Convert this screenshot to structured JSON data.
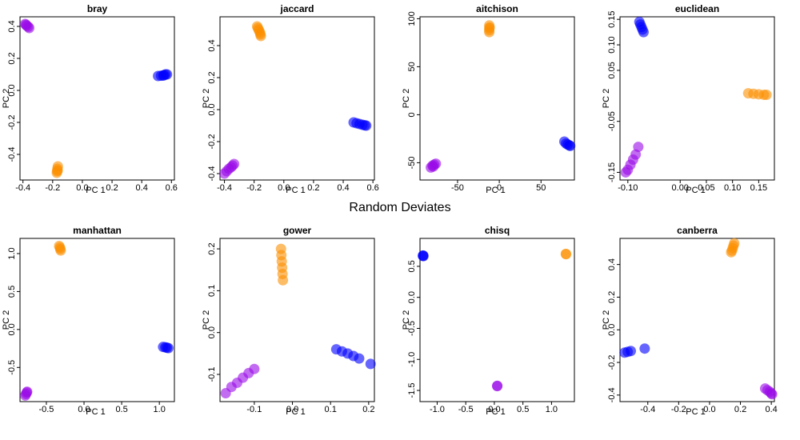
{
  "figure": {
    "suptitle": "Random Deviates"
  },
  "chart_data": [
    {
      "type": "scatter",
      "title": "bray",
      "xlabel": "PC 1",
      "ylabel": "PC 2",
      "xlim": [
        -0.42,
        0.62
      ],
      "ylim": [
        -0.56,
        0.46
      ],
      "xticks": [
        -0.4,
        -0.2,
        0.0,
        0.2,
        0.4,
        0.6
      ],
      "xtick_labels": [
        "-0.4",
        "-0.2",
        "0.0",
        "0.2",
        "0.4",
        "0.6"
      ],
      "yticks": [
        -0.4,
        -0.2,
        0.0,
        0.2,
        0.4
      ],
      "ytick_labels": [
        "-0.4",
        "-0.2",
        "0.0",
        "0.2",
        "0.4"
      ],
      "series": [
        {
          "color": "#9a0ae8",
          "points": [
            [
              -0.385,
              0.415
            ],
            [
              -0.375,
              0.405
            ],
            [
              -0.365,
              0.398
            ],
            [
              -0.358,
              0.39
            ],
            [
              -0.38,
              0.41
            ]
          ]
        },
        {
          "color": "#fb8f00",
          "points": [
            [
              -0.165,
              -0.475
            ],
            [
              -0.168,
              -0.49
            ],
            [
              -0.17,
              -0.505
            ],
            [
              -0.172,
              -0.515
            ],
            [
              -0.166,
              -0.5
            ]
          ]
        },
        {
          "color": "#0000ff",
          "points": [
            [
              0.51,
              0.09
            ],
            [
              0.53,
              0.092
            ],
            [
              0.55,
              0.095
            ],
            [
              0.56,
              0.1
            ],
            [
              0.57,
              0.1
            ],
            [
              0.545,
              0.093
            ]
          ]
        }
      ]
    },
    {
      "type": "scatter",
      "title": "jaccard",
      "xlabel": "PC 1",
      "ylabel": "PC 2",
      "xlim": [
        -0.43,
        0.61
      ],
      "ylim": [
        -0.44,
        0.58
      ],
      "xticks": [
        -0.4,
        -0.2,
        0.0,
        0.2,
        0.4,
        0.6
      ],
      "xtick_labels": [
        "-0.4",
        "-0.2",
        "0.0",
        "0.2",
        "0.4",
        "0.6"
      ],
      "yticks": [
        -0.4,
        -0.2,
        0.0,
        0.2,
        0.4
      ],
      "ytick_labels": [
        "-0.4",
        "-0.2",
        "0.0",
        "0.2",
        "0.4"
      ],
      "series": [
        {
          "color": "#fb8f00",
          "points": [
            [
              -0.18,
              0.52
            ],
            [
              -0.175,
              0.51
            ],
            [
              -0.17,
              0.5
            ],
            [
              -0.165,
              0.49
            ],
            [
              -0.16,
              0.48
            ],
            [
              -0.158,
              0.47
            ],
            [
              -0.155,
              0.46
            ]
          ]
        },
        {
          "color": "#9a0ae8",
          "points": [
            [
              -0.4,
              -0.4
            ],
            [
              -0.385,
              -0.385
            ],
            [
              -0.37,
              -0.37
            ],
            [
              -0.355,
              -0.36
            ],
            [
              -0.345,
              -0.35
            ],
            [
              -0.335,
              -0.34
            ]
          ]
        },
        {
          "color": "#0000ff",
          "points": [
            [
              0.47,
              -0.08
            ],
            [
              0.49,
              -0.085
            ],
            [
              0.51,
              -0.09
            ],
            [
              0.53,
              -0.095
            ],
            [
              0.545,
              -0.098
            ],
            [
              0.555,
              -0.1
            ]
          ]
        }
      ]
    },
    {
      "type": "scatter",
      "title": "aitchison",
      "xlabel": "PC 1",
      "ylabel": "PC 2",
      "xlim": [
        -95,
        90
      ],
      "ylim": [
        -68,
        102
      ],
      "xticks": [
        -50,
        0,
        50
      ],
      "xtick_labels": [
        "-50",
        "0",
        "50"
      ],
      "yticks": [
        -50,
        0,
        50,
        100
      ],
      "ytick_labels": [
        "-50",
        "0",
        "50",
        "100"
      ],
      "series": [
        {
          "color": "#fb8f00",
          "points": [
            [
              -12,
              93
            ],
            [
              -12,
              90
            ],
            [
              -12,
              88
            ],
            [
              -12,
              86
            ],
            [
              -11.5,
              91
            ]
          ]
        },
        {
          "color": "#9a0ae8",
          "points": [
            [
              -82,
              -55
            ],
            [
              -80,
              -53
            ],
            [
              -78,
              -52
            ],
            [
              -76,
              -51
            ],
            [
              -79,
              -54
            ]
          ]
        },
        {
          "color": "#0000ff",
          "points": [
            [
              78,
              -28
            ],
            [
              80,
              -30
            ],
            [
              82,
              -31
            ],
            [
              84,
              -32
            ],
            [
              85,
              -32.5
            ]
          ]
        }
      ]
    },
    {
      "type": "scatter",
      "title": "euclidean",
      "xlabel": "PC 1",
      "ylabel": "PC 2",
      "xlim": [
        -0.115,
        0.18
      ],
      "ylim": [
        -0.165,
        0.155
      ],
      "xticks": [
        -0.1,
        0.0,
        0.05,
        0.1,
        0.15
      ],
      "xtick_labels": [
        "-0.10",
        "0.00",
        "0.05",
        "0.10",
        "0.15"
      ],
      "yticks": [
        -0.15,
        -0.05,
        0.05,
        0.1,
        0.15
      ],
      "ytick_labels": [
        "-0.15",
        "-0.05",
        "0.05",
        "0.10",
        "0.15"
      ],
      "series": [
        {
          "color": "#0000ff",
          "points": [
            [
              -0.078,
              0.145
            ],
            [
              -0.076,
              0.14
            ],
            [
              -0.074,
              0.135
            ],
            [
              -0.072,
              0.13
            ],
            [
              -0.07,
              0.125
            ]
          ]
        },
        {
          "color": "#fb8f00",
          "points": [
            [
              0.13,
              0.005
            ],
            [
              0.14,
              0.004
            ],
            [
              0.15,
              0.003
            ],
            [
              0.16,
              0.002
            ],
            [
              0.165,
              0.002
            ]
          ]
        },
        {
          "color": "#9a0ae8",
          "points": [
            [
              -0.08,
              -0.1
            ],
            [
              -0.085,
              -0.115
            ],
            [
              -0.09,
              -0.125
            ],
            [
              -0.095,
              -0.135
            ],
            [
              -0.1,
              -0.145
            ],
            [
              -0.104,
              -0.15
            ]
          ]
        }
      ]
    },
    {
      "type": "scatter",
      "title": "manhattan",
      "xlabel": "PC 1",
      "ylabel": "PC 2",
      "xlim": [
        -0.85,
        1.2
      ],
      "ylim": [
        -0.95,
        1.2
      ],
      "xticks": [
        -0.5,
        0.0,
        0.5,
        1.0
      ],
      "xtick_labels": [
        "-0.5",
        "0.0",
        "0.5",
        "1.0"
      ],
      "yticks": [
        -0.5,
        0.0,
        0.5,
        1.0
      ],
      "ytick_labels": [
        "-0.5",
        "0.0",
        "0.5",
        "1.0"
      ],
      "series": [
        {
          "color": "#fb8f00",
          "points": [
            [
              -0.33,
              1.1
            ],
            [
              -0.32,
              1.08
            ],
            [
              -0.315,
              1.06
            ],
            [
              -0.31,
              1.04
            ]
          ]
        },
        {
          "color": "#9a0ae8",
          "points": [
            [
              -0.78,
              -0.87
            ],
            [
              -0.77,
              -0.85
            ],
            [
              -0.76,
              -0.83
            ],
            [
              -0.755,
              -0.82
            ]
          ]
        },
        {
          "color": "#0000ff",
          "points": [
            [
              1.05,
              -0.23
            ],
            [
              1.08,
              -0.235
            ],
            [
              1.1,
              -0.24
            ],
            [
              1.12,
              -0.245
            ]
          ]
        }
      ]
    },
    {
      "type": "scatter",
      "title": "gower",
      "xlabel": "PC 1",
      "ylabel": "PC 2",
      "xlim": [
        -0.19,
        0.215
      ],
      "ylim": [
        -0.165,
        0.225
      ],
      "xticks": [
        -0.1,
        0.0,
        0.1,
        0.2
      ],
      "xtick_labels": [
        "-0.1",
        "0.0",
        "0.1",
        "0.2"
      ],
      "yticks": [
        -0.1,
        0.0,
        0.1,
        0.2
      ],
      "ytick_labels": [
        "-0.1",
        "0.0",
        "0.1",
        "0.2"
      ],
      "series": [
        {
          "color": "#fb8f00",
          "points": [
            [
              -0.03,
              0.2
            ],
            [
              -0.029,
              0.185
            ],
            [
              -0.028,
              0.17
            ],
            [
              -0.027,
              0.155
            ],
            [
              -0.026,
              0.14
            ],
            [
              -0.025,
              0.125
            ]
          ]
        },
        {
          "color": "#9a0ae8",
          "points": [
            [
              -0.175,
              -0.145
            ],
            [
              -0.16,
              -0.13
            ],
            [
              -0.145,
              -0.12
            ],
            [
              -0.13,
              -0.108
            ],
            [
              -0.115,
              -0.097
            ],
            [
              -0.1,
              -0.087
            ]
          ]
        },
        {
          "color": "#0000ff",
          "points": [
            [
              0.115,
              -0.04
            ],
            [
              0.13,
              -0.045
            ],
            [
              0.145,
              -0.05
            ],
            [
              0.16,
              -0.056
            ],
            [
              0.175,
              -0.062
            ],
            [
              0.205,
              -0.075
            ]
          ]
        }
      ]
    },
    {
      "type": "scatter",
      "title": "chisq",
      "xlabel": "PC 1",
      "ylabel": "PC 2",
      "xlim": [
        -1.3,
        1.4
      ],
      "ylim": [
        -1.68,
        0.95
      ],
      "xticks": [
        -1.0,
        -0.5,
        0.0,
        0.5,
        1.0
      ],
      "xtick_labels": [
        "-1.0",
        "-0.5",
        "0.0",
        "0.5",
        "1.0"
      ],
      "yticks": [
        -1.5,
        -1.0,
        -0.5,
        0.0,
        0.5
      ],
      "ytick_labels": [
        "-1.5",
        "-1.0",
        "-0.5",
        "0.0",
        "0.5"
      ],
      "series": [
        {
          "color": "#0000ff",
          "points": [
            [
              -1.25,
              0.67
            ],
            [
              -1.24,
              0.665
            ],
            [
              -1.245,
              0.675
            ]
          ]
        },
        {
          "color": "#fb8f00",
          "points": [
            [
              1.25,
              0.7
            ],
            [
              1.255,
              0.695
            ]
          ]
        },
        {
          "color": "#9a0ae8",
          "points": [
            [
              0.05,
              -1.43
            ],
            [
              0.052,
              -1.425
            ]
          ]
        }
      ]
    },
    {
      "type": "scatter",
      "title": "canberra",
      "xlabel": "PC 1",
      "ylabel": "PC 2",
      "xlim": [
        -0.58,
        0.42
      ],
      "ylim": [
        -0.44,
        0.56
      ],
      "xticks": [
        -0.4,
        -0.2,
        0.0,
        0.2,
        0.4
      ],
      "xtick_labels": [
        "-0.4",
        "-0.2",
        "0.0",
        "0.2",
        "0.4"
      ],
      "yticks": [
        -0.4,
        -0.2,
        0.0,
        0.2,
        0.4
      ],
      "ytick_labels": [
        "-0.4",
        "-0.2",
        "0.0",
        "0.2",
        "0.4"
      ],
      "series": [
        {
          "color": "#fb8f00",
          "points": [
            [
              0.16,
              0.53
            ],
            [
              0.155,
              0.515
            ],
            [
              0.15,
              0.5
            ],
            [
              0.145,
              0.485
            ],
            [
              0.14,
              0.475
            ]
          ]
        },
        {
          "color": "#0000ff",
          "points": [
            [
              -0.55,
              -0.14
            ],
            [
              -0.53,
              -0.135
            ],
            [
              -0.51,
              -0.13
            ],
            [
              -0.42,
              -0.115
            ]
          ]
        },
        {
          "color": "#9a0ae8",
          "points": [
            [
              0.36,
              -0.36
            ],
            [
              0.375,
              -0.37
            ],
            [
              0.39,
              -0.38
            ],
            [
              0.4,
              -0.39
            ],
            [
              0.405,
              -0.395
            ]
          ]
        }
      ]
    }
  ]
}
